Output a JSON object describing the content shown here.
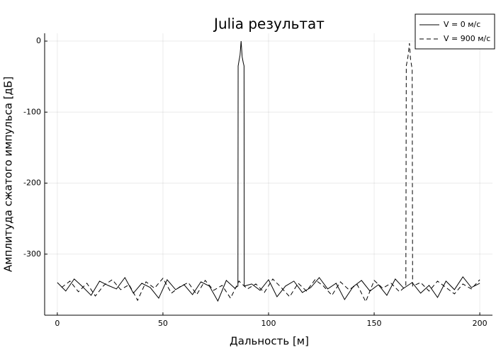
{
  "chart_data": {
    "type": "line",
    "title": "Julia результат",
    "x_label": "Дальность [м]",
    "y_label": "Амплитуда сжатого импульса [дБ]",
    "xlim": [
      -6,
      206
    ],
    "ylim": [
      -386,
      11
    ],
    "xticks": [
      0,
      50,
      100,
      150,
      200
    ],
    "yticks": [
      0,
      -100,
      -200,
      -300
    ],
    "grid": true,
    "legend": "top-right",
    "series": [
      {
        "name": "V = 0 м/с",
        "color": "#000000",
        "linestyle": "solid",
        "x": [
          0,
          4,
          8,
          12,
          16,
          20,
          24,
          28,
          32,
          36,
          40,
          44,
          48,
          52,
          56,
          60,
          64,
          68,
          72,
          76,
          80,
          84,
          85.5,
          85.6,
          86,
          86.5,
          87,
          87.5,
          88,
          88.4,
          88.5,
          92,
          96,
          100,
          104,
          108,
          112,
          116,
          120,
          124,
          128,
          132,
          136,
          140,
          144,
          148,
          152,
          156,
          160,
          164,
          168,
          172,
          176,
          180,
          184,
          188,
          192,
          196,
          200
        ],
        "values": [
          -340,
          -352,
          -335,
          -346,
          -358,
          -338,
          -344,
          -349,
          -333,
          -355,
          -341,
          -347,
          -362,
          -336,
          -350,
          -343,
          -357,
          -339,
          -345,
          -366,
          -337,
          -348,
          -345,
          -35,
          -28,
          -20,
          0,
          -22,
          -30,
          -35,
          -345,
          -342,
          -351,
          -336,
          -360,
          -345,
          -338,
          -354,
          -347,
          -333,
          -349,
          -341,
          -364,
          -346,
          -337,
          -352,
          -343,
          -358,
          -335,
          -348,
          -340,
          -355,
          -344,
          -361,
          -338,
          -350,
          -332,
          -347,
          -341
        ]
      },
      {
        "name": "V = 900 м/с",
        "color": "#000000",
        "linestyle": "dashed",
        "x": [
          2,
          6,
          10,
          14,
          18,
          22,
          26,
          30,
          34,
          38,
          42,
          46,
          50,
          54,
          58,
          62,
          66,
          70,
          74,
          78,
          82,
          86,
          90,
          94,
          98,
          102,
          106,
          110,
          114,
          118,
          122,
          126,
          130,
          134,
          138,
          142,
          146,
          150,
          154,
          158,
          162,
          165,
          165.2,
          166,
          166.7,
          167.2,
          168,
          168.2,
          172,
          176,
          180,
          184,
          188,
          192,
          196,
          200
        ],
        "values": [
          -347,
          -338,
          -353,
          -341,
          -359,
          -344,
          -336,
          -350,
          -343,
          -365,
          -339,
          -348,
          -334,
          -355,
          -346,
          -340,
          -357,
          -337,
          -351,
          -344,
          -362,
          -338,
          -349,
          -342,
          -354,
          -335,
          -347,
          -360,
          -341,
          -352,
          -336,
          -345,
          -358,
          -339,
          -350,
          -343,
          -367,
          -337,
          -348,
          -341,
          -353,
          -345,
          -35,
          -22,
          -3,
          -25,
          -40,
          -345,
          -340,
          -352,
          -338,
          -347,
          -356,
          -342,
          -349,
          -336
        ]
      }
    ]
  }
}
